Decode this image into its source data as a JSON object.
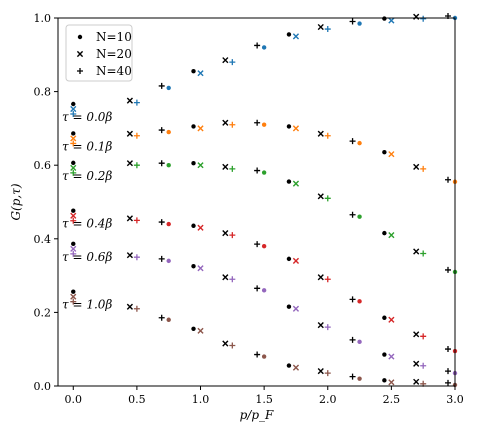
{
  "chart_data": {
    "type": "scatter",
    "xlabel": "p/p_F",
    "ylabel": "G(p,τ)",
    "xlim": [
      -0.12,
      3.0
    ],
    "ylim": [
      0.0,
      1.0
    ],
    "xticks": [
      "0.0",
      "0.5",
      "1.0",
      "1.5",
      "2.0",
      "2.5",
      "3.0"
    ],
    "yticks": [
      "0.0",
      "0.2",
      "0.4",
      "0.6",
      "0.8",
      "1.0"
    ],
    "legend": {
      "placement": "top-left",
      "entries": [
        {
          "marker": "dot",
          "label": "N=10"
        },
        {
          "marker": "x",
          "label": "N=20"
        },
        {
          "marker": "plus",
          "label": "N=40"
        }
      ]
    },
    "reference_color": "#000000",
    "series": [
      {
        "tau": "τ = 0.0β",
        "color": "#1f77b4",
        "x": [
          0.0,
          0.5,
          0.75,
          1.0,
          1.25,
          1.5,
          1.75,
          2.0,
          2.25,
          2.5,
          2.75,
          3.0
        ],
        "y": [
          0.75,
          0.77,
          0.81,
          0.85,
          0.88,
          0.92,
          0.95,
          0.97,
          0.985,
          0.993,
          0.998,
          1.0
        ]
      },
      {
        "tau": "τ = 0.1β",
        "color": "#ff7f0e",
        "x": [
          0.0,
          0.5,
          0.75,
          1.0,
          1.25,
          1.5,
          1.75,
          2.0,
          2.25,
          2.5,
          2.75,
          3.0
        ],
        "y": [
          0.67,
          0.68,
          0.69,
          0.7,
          0.71,
          0.71,
          0.7,
          0.68,
          0.66,
          0.63,
          0.59,
          0.555
        ]
      },
      {
        "tau": "τ = 0.2β",
        "color": "#2ca02c",
        "x": [
          0.0,
          0.5,
          0.75,
          1.0,
          1.25,
          1.5,
          1.75,
          2.0,
          2.25,
          2.5,
          2.75,
          3.0
        ],
        "y": [
          0.59,
          0.6,
          0.6,
          0.6,
          0.59,
          0.58,
          0.55,
          0.51,
          0.46,
          0.41,
          0.36,
          0.31
        ]
      },
      {
        "tau": "τ = 0.4β",
        "color": "#d62728",
        "x": [
          0.0,
          0.5,
          0.75,
          1.0,
          1.25,
          1.5,
          1.75,
          2.0,
          2.25,
          2.5,
          2.75,
          3.0
        ],
        "y": [
          0.46,
          0.45,
          0.44,
          0.43,
          0.41,
          0.38,
          0.34,
          0.29,
          0.23,
          0.18,
          0.135,
          0.095
        ]
      },
      {
        "tau": "τ = 0.6β",
        "color": "#9467bd",
        "x": [
          0.0,
          0.5,
          0.75,
          1.0,
          1.25,
          1.5,
          1.75,
          2.0,
          2.25,
          2.5,
          2.75,
          3.0
        ],
        "y": [
          0.37,
          0.35,
          0.34,
          0.32,
          0.29,
          0.26,
          0.21,
          0.16,
          0.12,
          0.08,
          0.055,
          0.035
        ]
      },
      {
        "tau": "τ = 1.0β",
        "color": "#8c564b",
        "x": [
          0.0,
          0.5,
          0.75,
          1.0,
          1.25,
          1.5,
          1.75,
          2.0,
          2.25,
          2.5,
          2.75,
          3.0
        ],
        "y": [
          0.24,
          0.21,
          0.18,
          0.15,
          0.11,
          0.08,
          0.05,
          0.035,
          0.02,
          0.01,
          0.006,
          0.003
        ]
      }
    ]
  }
}
